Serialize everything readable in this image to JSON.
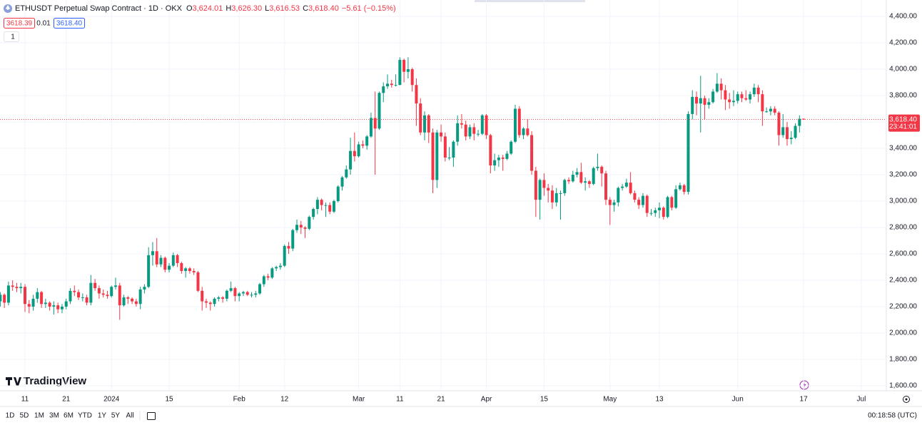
{
  "chart_data": {
    "type": "candlestick",
    "header": {
      "symbol": "ETHUSDT Perpetual Swap Contract · 1D · OKX",
      "ohlc": [
        {
          "key": "O",
          "value": "3,624.01"
        },
        {
          "key": "H",
          "value": "3,626.30"
        },
        {
          "key": "L",
          "value": "3,616.53"
        },
        {
          "key": "C",
          "value": "3,618.40"
        }
      ],
      "change": "−5.61 (−0.15%)"
    },
    "bid": "3618.39",
    "spread": "0.01",
    "ask": "3618.40",
    "quantity": "1",
    "up_color": "#089981",
    "down_color": "#f23645",
    "candles": [
      [
        2240,
        2310,
        2200,
        2290
      ],
      [
        2290,
        2300,
        2190,
        2230
      ],
      [
        2230,
        2390,
        2210,
        2360
      ],
      [
        2360,
        2400,
        2320,
        2350
      ],
      [
        2350,
        2380,
        2310,
        2340
      ],
      [
        2340,
        2380,
        2300,
        2350
      ],
      [
        2350,
        2370,
        2160,
        2220
      ],
      [
        2220,
        2250,
        2150,
        2200
      ],
      [
        2200,
        2290,
        2170,
        2260
      ],
      [
        2260,
        2340,
        2230,
        2310
      ],
      [
        2310,
        2320,
        2190,
        2220
      ],
      [
        2220,
        2260,
        2190,
        2230
      ],
      [
        2230,
        2240,
        2170,
        2200
      ],
      [
        2200,
        2240,
        2140,
        2210
      ],
      [
        2210,
        2230,
        2150,
        2180
      ],
      [
        2180,
        2220,
        2150,
        2200
      ],
      [
        2200,
        2260,
        2180,
        2240
      ],
      [
        2240,
        2340,
        2220,
        2320
      ],
      [
        2320,
        2360,
        2280,
        2310
      ],
      [
        2310,
        2330,
        2250,
        2270
      ],
      [
        2270,
        2300,
        2240,
        2270
      ],
      [
        2270,
        2290,
        2210,
        2230
      ],
      [
        2230,
        2440,
        2210,
        2380
      ],
      [
        2380,
        2410,
        2320,
        2340
      ],
      [
        2340,
        2360,
        2260,
        2300
      ],
      [
        2300,
        2330,
        2270,
        2290
      ],
      [
        2290,
        2320,
        2260,
        2280
      ],
      [
        2280,
        2360,
        2270,
        2350
      ],
      [
        2350,
        2420,
        2330,
        2360
      ],
      [
        2360,
        2380,
        2100,
        2210
      ],
      [
        2210,
        2290,
        2200,
        2270
      ],
      [
        2270,
        2280,
        2220,
        2260
      ],
      [
        2260,
        2270,
        2220,
        2240
      ],
      [
        2240,
        2260,
        2200,
        2220
      ],
      [
        2220,
        2350,
        2180,
        2330
      ],
      [
        2330,
        2370,
        2300,
        2350
      ],
      [
        2350,
        2650,
        2340,
        2590
      ],
      [
        2590,
        2690,
        2510,
        2620
      ],
      [
        2620,
        2720,
        2500,
        2520
      ],
      [
        2520,
        2590,
        2500,
        2570
      ],
      [
        2570,
        2580,
        2460,
        2480
      ],
      [
        2480,
        2530,
        2460,
        2510
      ],
      [
        2510,
        2610,
        2500,
        2590
      ],
      [
        2590,
        2600,
        2500,
        2530
      ],
      [
        2530,
        2540,
        2450,
        2470
      ],
      [
        2470,
        2500,
        2420,
        2490
      ],
      [
        2490,
        2500,
        2450,
        2470
      ],
      [
        2470,
        2490,
        2440,
        2460
      ],
      [
        2460,
        2470,
        2310,
        2320
      ],
      [
        2320,
        2350,
        2170,
        2240
      ],
      [
        2240,
        2260,
        2190,
        2230
      ],
      [
        2230,
        2240,
        2170,
        2220
      ],
      [
        2220,
        2270,
        2200,
        2260
      ],
      [
        2260,
        2280,
        2240,
        2270
      ],
      [
        2270,
        2280,
        2230,
        2260
      ],
      [
        2260,
        2330,
        2240,
        2320
      ],
      [
        2320,
        2390,
        2310,
        2340
      ],
      [
        2340,
        2350,
        2240,
        2280
      ],
      [
        2280,
        2310,
        2240,
        2300
      ],
      [
        2300,
        2320,
        2280,
        2310
      ],
      [
        2310,
        2320,
        2280,
        2290
      ],
      [
        2290,
        2310,
        2270,
        2290
      ],
      [
        2290,
        2320,
        2270,
        2300
      ],
      [
        2300,
        2380,
        2290,
        2370
      ],
      [
        2370,
        2440,
        2350,
        2430
      ],
      [
        2430,
        2450,
        2400,
        2420
      ],
      [
        2420,
        2500,
        2410,
        2490
      ],
      [
        2490,
        2510,
        2470,
        2500
      ],
      [
        2500,
        2530,
        2480,
        2510
      ],
      [
        2510,
        2670,
        2500,
        2660
      ],
      [
        2660,
        2690,
        2600,
        2640
      ],
      [
        2640,
        2790,
        2620,
        2780
      ],
      [
        2780,
        2860,
        2760,
        2820
      ],
      [
        2820,
        2850,
        2750,
        2800
      ],
      [
        2800,
        2810,
        2720,
        2790
      ],
      [
        2790,
        2890,
        2780,
        2880
      ],
      [
        2880,
        2950,
        2860,
        2940
      ],
      [
        2940,
        3030,
        2900,
        3010
      ],
      [
        3010,
        3020,
        2930,
        2970
      ],
      [
        2970,
        2990,
        2880,
        2970
      ],
      [
        2970,
        2990,
        2900,
        2920
      ],
      [
        2920,
        3010,
        2910,
        3000
      ],
      [
        3000,
        3120,
        2990,
        3110
      ],
      [
        3110,
        3190,
        3080,
        3180
      ],
      [
        3180,
        3270,
        3170,
        3240
      ],
      [
        3240,
        3480,
        3200,
        3380
      ],
      [
        3380,
        3520,
        3300,
        3340
      ],
      [
        3340,
        3450,
        3330,
        3430
      ],
      [
        3430,
        3460,
        3400,
        3420
      ],
      [
        3420,
        3500,
        3390,
        3490
      ],
      [
        3490,
        3670,
        3480,
        3630
      ],
      [
        3630,
        3830,
        3200,
        3550
      ],
      [
        3550,
        3830,
        3540,
        3820
      ],
      [
        3820,
        3900,
        3750,
        3870
      ],
      [
        3870,
        3960,
        3850,
        3890
      ],
      [
        3890,
        3920,
        3860,
        3880
      ],
      [
        3880,
        3960,
        3870,
        3880
      ],
      [
        3880,
        4090,
        3880,
        4070
      ],
      [
        4070,
        4080,
        3900,
        3980
      ],
      [
        3980,
        4090,
        3930,
        4000
      ],
      [
        4000,
        4010,
        3830,
        3880
      ],
      [
        3880,
        3930,
        3570,
        3740
      ],
      [
        3740,
        3780,
        3500,
        3520
      ],
      [
        3520,
        3680,
        3460,
        3650
      ],
      [
        3650,
        3660,
        3440,
        3520
      ],
      [
        3520,
        3550,
        3060,
        3160
      ],
      [
        3160,
        3540,
        3100,
        3520
      ],
      [
        3520,
        3580,
        3450,
        3490
      ],
      [
        3490,
        3520,
        3300,
        3330
      ],
      [
        3330,
        3410,
        3310,
        3330
      ],
      [
        3330,
        3460,
        3260,
        3450
      ],
      [
        3450,
        3650,
        3420,
        3590
      ],
      [
        3590,
        3660,
        3550,
        3580
      ],
      [
        3580,
        3610,
        3460,
        3490
      ],
      [
        3490,
        3580,
        3470,
        3560
      ],
      [
        3560,
        3590,
        3460,
        3510
      ],
      [
        3510,
        3540,
        3490,
        3510
      ],
      [
        3510,
        3660,
        3500,
        3650
      ],
      [
        3650,
        3660,
        3470,
        3500
      ],
      [
        3500,
        3510,
        3210,
        3270
      ],
      [
        3270,
        3360,
        3230,
        3310
      ],
      [
        3310,
        3350,
        3260,
        3330
      ],
      [
        3330,
        3350,
        3230,
        3320
      ],
      [
        3320,
        3380,
        3310,
        3360
      ],
      [
        3360,
        3460,
        3350,
        3450
      ],
      [
        3450,
        3730,
        3440,
        3700
      ],
      [
        3700,
        3720,
        3480,
        3500
      ],
      [
        3500,
        3560,
        3470,
        3550
      ],
      [
        3550,
        3620,
        3490,
        3500
      ],
      [
        3500,
        3530,
        3200,
        3230
      ],
      [
        3230,
        3260,
        2880,
        3010
      ],
      [
        3010,
        3170,
        2860,
        3160
      ],
      [
        3160,
        3210,
        3040,
        3100
      ],
      [
        3100,
        3130,
        2990,
        3080
      ],
      [
        3080,
        3120,
        2940,
        2990
      ],
      [
        2990,
        3100,
        2960,
        3060
      ],
      [
        3060,
        3080,
        2860,
        3060
      ],
      [
        3060,
        3170,
        3040,
        3160
      ],
      [
        3160,
        3180,
        3130,
        3150
      ],
      [
        3150,
        3230,
        3140,
        3200
      ],
      [
        3200,
        3250,
        3180,
        3220
      ],
      [
        3220,
        3290,
        3130,
        3140
      ],
      [
        3140,
        3180,
        3080,
        3150
      ],
      [
        3150,
        3160,
        3100,
        3130
      ],
      [
        3130,
        3260,
        3120,
        3250
      ],
      [
        3250,
        3360,
        3230,
        3260
      ],
      [
        3260,
        3270,
        3110,
        3210
      ],
      [
        3210,
        3230,
        2970,
        3010
      ],
      [
        3010,
        3030,
        2820,
        2970
      ],
      [
        2970,
        3010,
        2920,
        2990
      ],
      [
        2990,
        3110,
        2960,
        3100
      ],
      [
        3100,
        3130,
        3080,
        3110
      ],
      [
        3110,
        3170,
        3100,
        3140
      ],
      [
        3140,
        3220,
        3050,
        3060
      ],
      [
        3060,
        3080,
        2990,
        3010
      ],
      [
        3010,
        3030,
        2940,
        2970
      ],
      [
        2970,
        3060,
        2950,
        3040
      ],
      [
        3040,
        3050,
        2880,
        2910
      ],
      [
        2910,
        2940,
        2890,
        2910
      ],
      [
        2910,
        2950,
        2880,
        2930
      ],
      [
        2930,
        2990,
        2870,
        2950
      ],
      [
        2950,
        2960,
        2860,
        2880
      ],
      [
        2880,
        3040,
        2870,
        3030
      ],
      [
        3030,
        3040,
        2930,
        2950
      ],
      [
        2950,
        3120,
        2940,
        3090
      ],
      [
        3090,
        3140,
        3080,
        3120
      ],
      [
        3120,
        3130,
        3050,
        3070
      ],
      [
        3070,
        3680,
        3050,
        3660
      ],
      [
        3660,
        3840,
        3620,
        3790
      ],
      [
        3790,
        3830,
        3650,
        3740
      ],
      [
        3740,
        3950,
        3520,
        3780
      ],
      [
        3780,
        3800,
        3620,
        3730
      ],
      [
        3730,
        3780,
        3700,
        3750
      ],
      [
        3750,
        3850,
        3740,
        3830
      ],
      [
        3830,
        3970,
        3820,
        3890
      ],
      [
        3890,
        3930,
        3770,
        3840
      ],
      [
        3840,
        3880,
        3690,
        3770
      ],
      [
        3770,
        3820,
        3700,
        3750
      ],
      [
        3750,
        3840,
        3720,
        3760
      ],
      [
        3760,
        3830,
        3740,
        3810
      ],
      [
        3810,
        3830,
        3750,
        3780
      ],
      [
        3780,
        3840,
        3760,
        3770
      ],
      [
        3770,
        3830,
        3740,
        3810
      ],
      [
        3810,
        3890,
        3790,
        3860
      ],
      [
        3860,
        3880,
        3750,
        3810
      ],
      [
        3810,
        3840,
        3570,
        3680
      ],
      [
        3680,
        3710,
        3670,
        3680
      ],
      [
        3680,
        3720,
        3650,
        3700
      ],
      [
        3700,
        3720,
        3650,
        3670
      ],
      [
        3670,
        3680,
        3420,
        3500
      ],
      [
        3500,
        3660,
        3480,
        3560
      ],
      [
        3560,
        3600,
        3420,
        3470
      ],
      [
        3470,
        3530,
        3430,
        3480
      ],
      [
        3480,
        3590,
        3470,
        3570
      ],
      [
        3570,
        3650,
        3520,
        3624.01
      ],
      [
        3624.01,
        3626.3,
        3616.53,
        3618.4
      ]
    ],
    "xticks": [
      {
        "value": 6,
        "label": "11"
      },
      {
        "value": 16,
        "label": "21"
      },
      {
        "value": 27,
        "label": "2024"
      },
      {
        "value": 41,
        "label": "15"
      },
      {
        "value": 58,
        "label": "Feb"
      },
      {
        "value": 69,
        "label": "12"
      },
      {
        "value": 87,
        "label": "Mar"
      },
      {
        "value": 97,
        "label": "11"
      },
      {
        "value": 107,
        "label": "21"
      },
      {
        "value": 118,
        "label": "Apr"
      },
      {
        "value": 132,
        "label": "15"
      },
      {
        "value": 148,
        "label": "May"
      },
      {
        "value": 160,
        "label": "13"
      },
      {
        "value": 179,
        "label": "Jun"
      },
      {
        "value": 195,
        "label": "17"
      },
      {
        "value": 209,
        "label": "Jul"
      }
    ],
    "ylim": [
      1600,
      4400
    ],
    "yticks": [
      {
        "value": 1600,
        "label": "1,600.00"
      },
      {
        "value": 1800,
        "label": "1,800.00"
      },
      {
        "value": 2000,
        "label": "2,000.00"
      },
      {
        "value": 2200,
        "label": "2,200.00"
      },
      {
        "value": 2400,
        "label": "2,400.00"
      },
      {
        "value": 2600,
        "label": "2,600.00"
      },
      {
        "value": 2800,
        "label": "2,800.00"
      },
      {
        "value": 3000,
        "label": "3,000.00"
      },
      {
        "value": 3200,
        "label": "3,200.00"
      },
      {
        "value": 3400,
        "label": "3,400.00"
      },
      {
        "value": 3600,
        "label": "3,600.00"
      },
      {
        "value": 3800,
        "label": "3,800.00"
      },
      {
        "value": 4000,
        "label": "4,000.00"
      },
      {
        "value": 4200,
        "label": "4,200.00"
      },
      {
        "value": 4400,
        "label": "4,400.00"
      }
    ],
    "grid": true,
    "last_price": {
      "value": 3618.4,
      "label": "3,618.40"
    },
    "countdown": "23:41:01",
    "logo": "TradingView",
    "ranges": [
      "1D",
      "5D",
      "1M",
      "3M",
      "6M",
      "YTD",
      "1Y",
      "5Y",
      "All"
    ],
    "clock": "00:18:58 (UTC)"
  }
}
